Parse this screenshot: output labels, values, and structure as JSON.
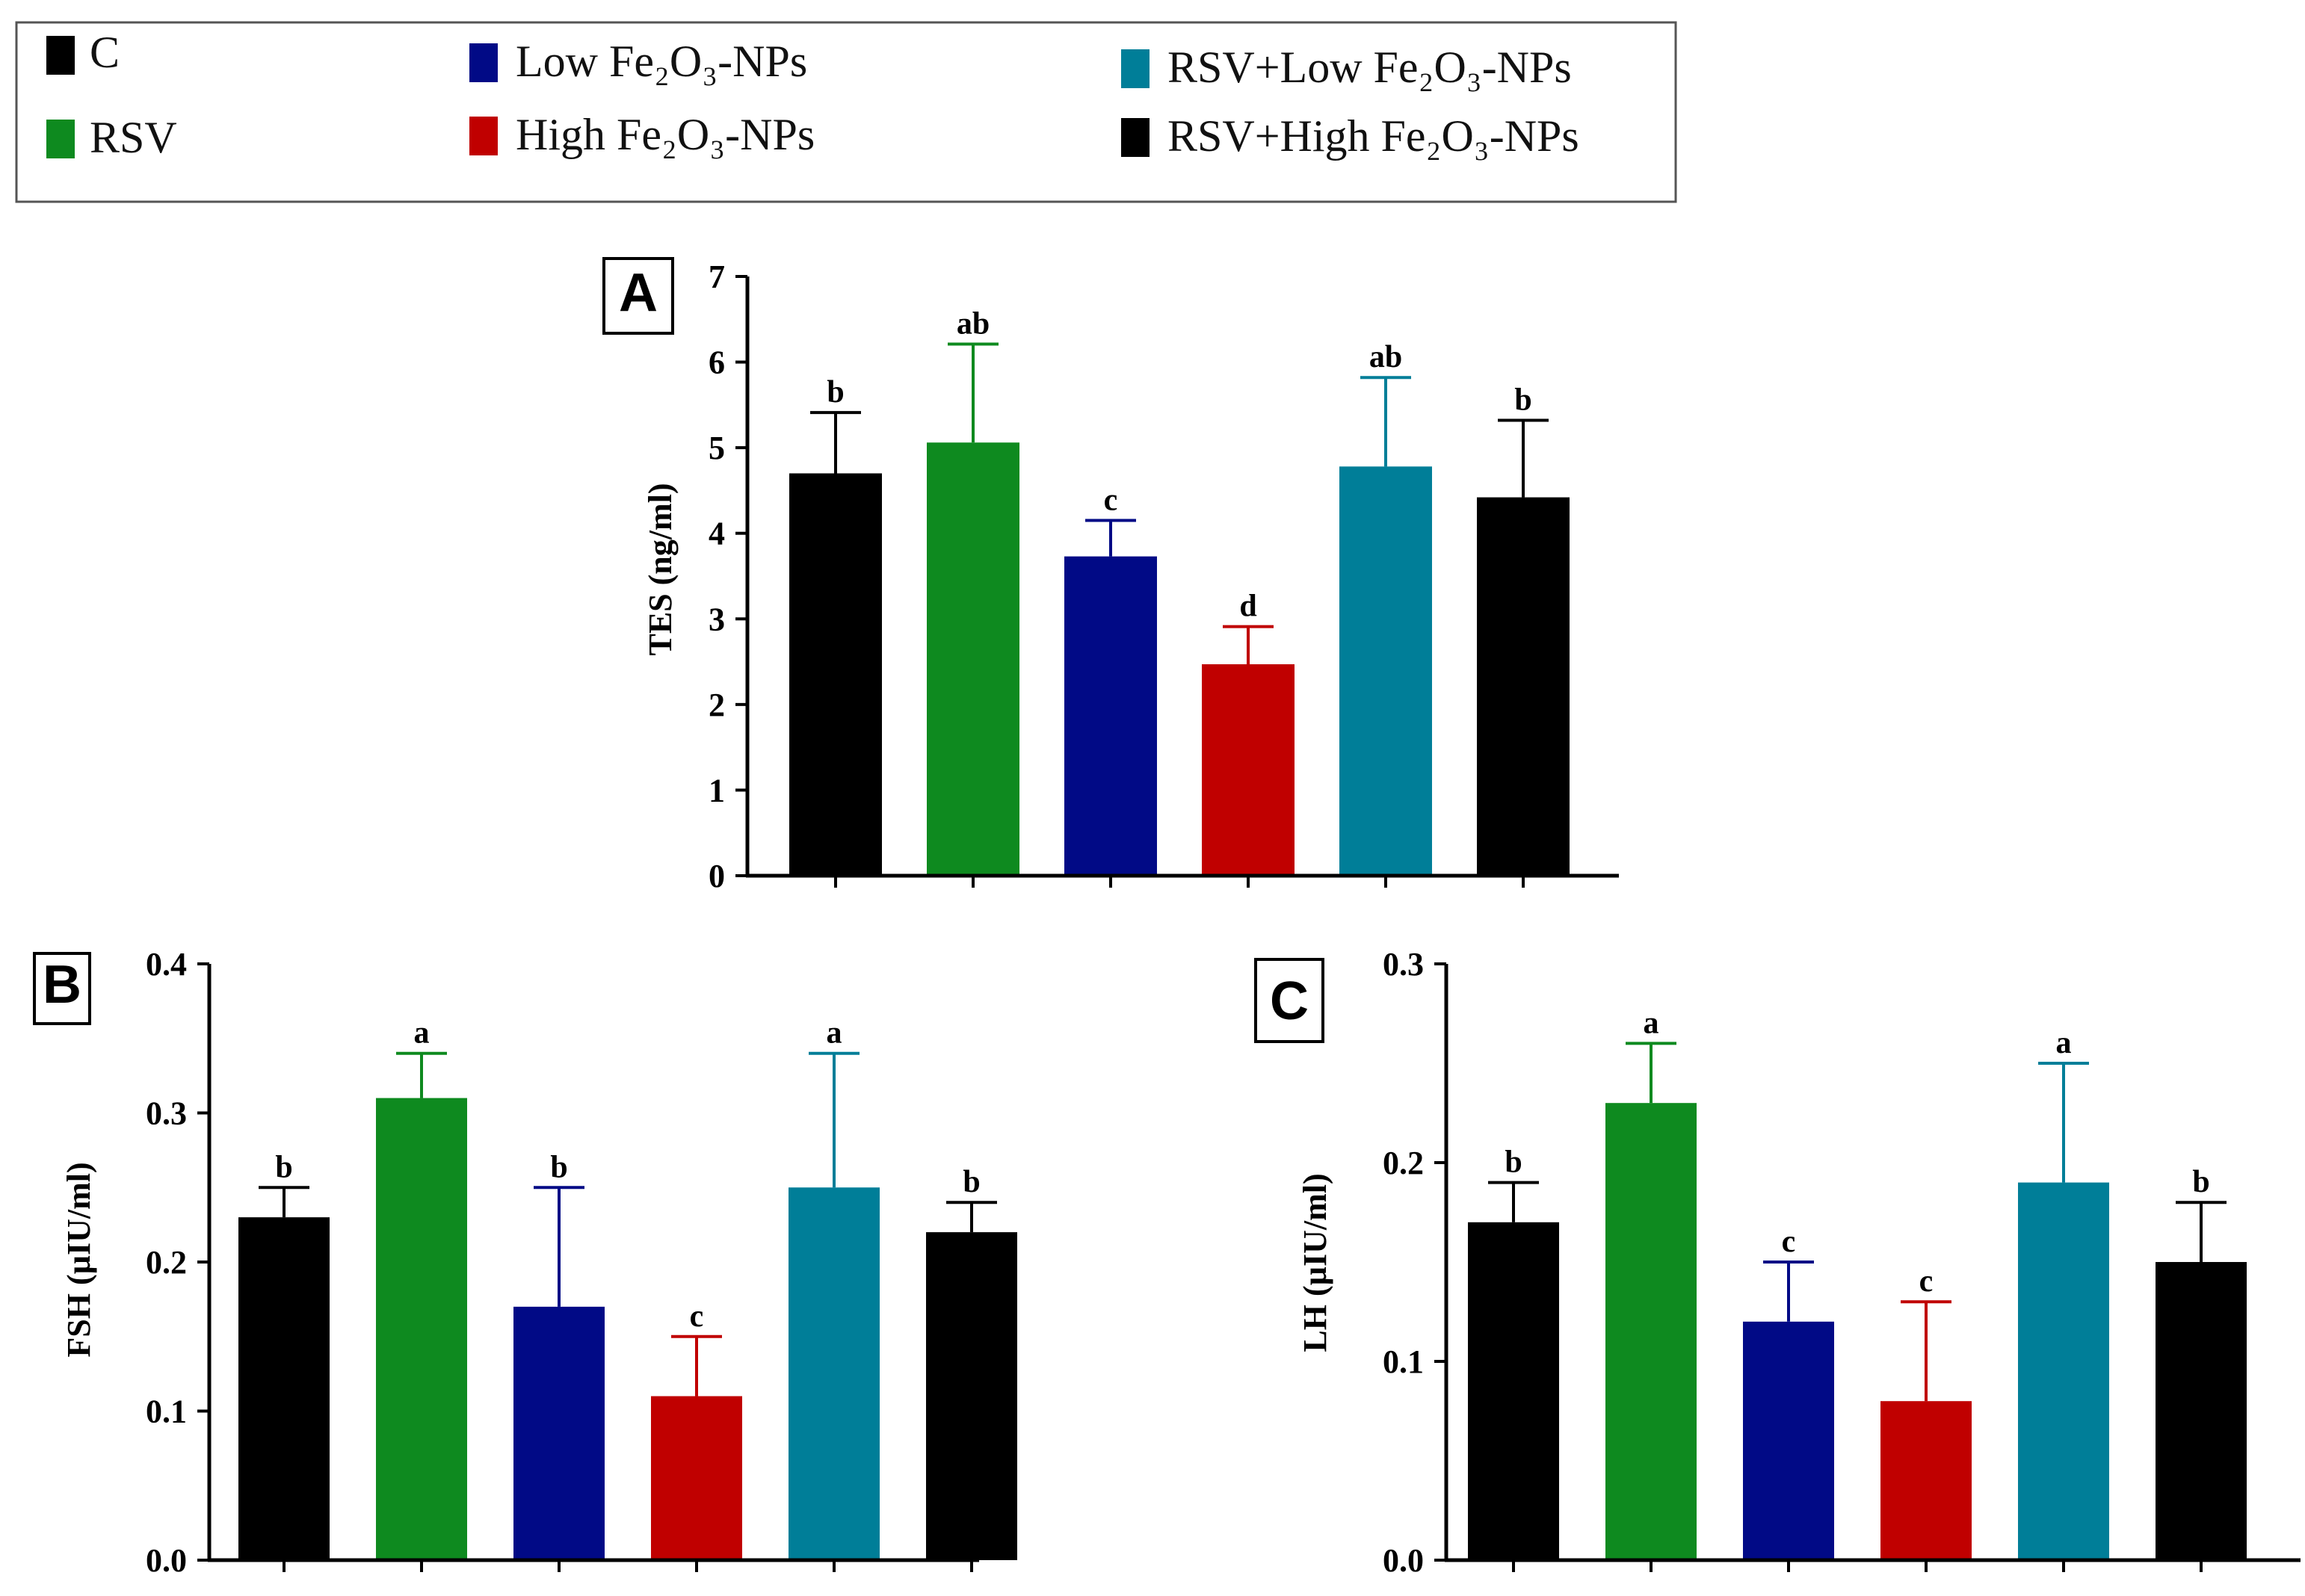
{
  "legend": {
    "items": [
      {
        "label": "C",
        "color": "#000000"
      },
      {
        "label": "RSV",
        "color": "#0E8A1F"
      },
      {
        "label": "Low Fe₂O₃-NPs",
        "color": "#010A86"
      },
      {
        "label": "High Fe₂O₃-NPs",
        "color": "#C00000"
      },
      {
        "label": "RSV+Low Fe₂O₃-NPs",
        "color": "#007E98"
      },
      {
        "label": "RSV+High Fe₂O₃-NPs",
        "color": "#000000"
      }
    ]
  },
  "chart_data": [
    {
      "type": "bar",
      "panel_label": "A",
      "ylabel": "TES (ng/ml)",
      "ylim": [
        0,
        7
      ],
      "yticks": [
        "0",
        "1",
        "2",
        "3",
        "4",
        "5",
        "6",
        "7"
      ],
      "categories": [
        "C",
        "RSV",
        "Low Fe₂O₃-NPs",
        "High Fe₂O₃-NPs",
        "RSV+Low Fe₂O₃-NPs",
        "RSV+High Fe₂O₃-NPs"
      ],
      "values": [
        4.7,
        5.06,
        3.73,
        2.47,
        4.78,
        4.42
      ],
      "errors": [
        0.71,
        1.15,
        0.42,
        0.44,
        1.04,
        0.9
      ],
      "sig_letters": [
        "b",
        "ab",
        "c",
        "d",
        "ab",
        "b"
      ],
      "colors": [
        "#000000",
        "#0E8A1F",
        "#010A86",
        "#C00000",
        "#007E98",
        "#000000"
      ]
    },
    {
      "type": "bar",
      "panel_label": "B",
      "ylabel": "FSH (µIU/ml)",
      "ylim": [
        0,
        0.4
      ],
      "yticks": [
        "0.0",
        "0.1",
        "0.2",
        "0.3",
        "0.4"
      ],
      "categories": [
        "C",
        "RSV",
        "Low Fe₂O₃-NPs",
        "High Fe₂O₃-NPs",
        "RSV+Low Fe₂O₃-NPs",
        "RSV+High Fe₂O₃-NPs"
      ],
      "values": [
        0.23,
        0.31,
        0.17,
        0.11,
        0.25,
        0.22
      ],
      "errors": [
        0.02,
        0.03,
        0.08,
        0.04,
        0.09,
        0.02
      ],
      "sig_letters": [
        "b",
        "a",
        "b",
        "c",
        "a",
        "b"
      ],
      "colors": [
        "#000000",
        "#0E8A1F",
        "#010A86",
        "#C00000",
        "#007E98",
        "#000000"
      ]
    },
    {
      "type": "bar",
      "panel_label": "C",
      "ylabel": "LH (µIU/ml)",
      "ylim": [
        0,
        0.3
      ],
      "yticks": [
        "0.0",
        "0.1",
        "0.2",
        "0.3"
      ],
      "categories": [
        "C",
        "RSV",
        "Low Fe₂O₃-NPs",
        "High Fe₂O₃-NPs",
        "RSV+Low Fe₂O₃-NPs",
        "RSV+High Fe₂O₃-NPs"
      ],
      "values": [
        0.17,
        0.23,
        0.12,
        0.08,
        0.19,
        0.15
      ],
      "errors": [
        0.02,
        0.03,
        0.03,
        0.05,
        0.06,
        0.03
      ],
      "sig_letters": [
        "b",
        "a",
        "c",
        "c",
        "a",
        "b"
      ],
      "colors": [
        "#000000",
        "#0E8A1F",
        "#010A86",
        "#C00000",
        "#007E98",
        "#000000"
      ]
    }
  ]
}
